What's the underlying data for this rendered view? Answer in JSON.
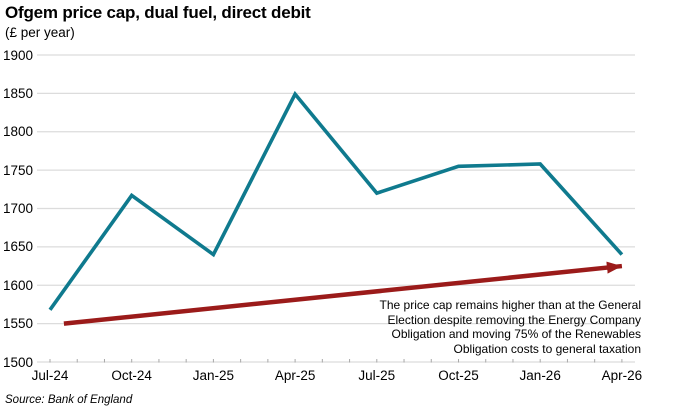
{
  "title": "Ofgem price cap, dual fuel, direct debit",
  "subtitle": "(£ per year)",
  "source": "Source: Bank of England",
  "annotation": {
    "text": "The price cap remains higher than at the General\nElection despite removing the Energy Company\nObligation and moving 75% of the Renewables\nObligation costs to general taxation"
  },
  "colors": {
    "line": "#0f7a8e",
    "arrow": "#9b1b1a",
    "grid": "#dcdcdc",
    "minor_tick": "#a8a8a8"
  },
  "chart_data": {
    "type": "line",
    "title": "Ofgem price cap, dual fuel, direct debit",
    "ylabel": "£ per year",
    "categories": [
      "Jul-24",
      "Oct-24",
      "Jan-25",
      "Apr-25",
      "Jul-25",
      "Oct-25",
      "Jan-26",
      "Apr-26"
    ],
    "series": [
      {
        "name": "Ofgem price cap",
        "values": [
          1568,
          1717,
          1640,
          1849,
          1720,
          1755,
          1758,
          1640
        ]
      }
    ],
    "y_ticks": [
      1900,
      1850,
      1800,
      1750,
      1700,
      1650,
      1600,
      1550,
      1500
    ],
    "ylim": [
      1500,
      1900
    ],
    "grid": "horizontal",
    "legend": "none",
    "annotation_arrow": {
      "start_index": 0.17,
      "start_value": 1550,
      "end_index": 7.0,
      "end_value": 1625
    }
  }
}
